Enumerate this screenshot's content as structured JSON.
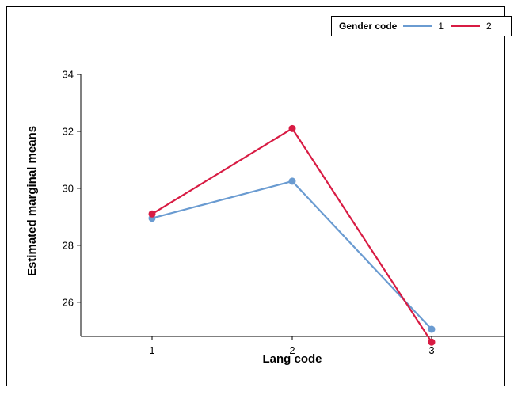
{
  "chart_data": {
    "type": "line",
    "title": "",
    "xlabel": "Lang code",
    "ylabel": "Estimated marginal means",
    "categories": [
      "1",
      "2",
      "3"
    ],
    "ylim": [
      24.8,
      34
    ],
    "yticks": [
      26,
      28,
      30,
      32,
      34
    ],
    "legend": {
      "title": "Gender code",
      "placement": "top-right"
    },
    "series": [
      {
        "name": "1",
        "color": "#6a9bd1",
        "values": [
          28.95,
          30.25,
          25.05
        ]
      },
      {
        "name": "2",
        "color": "#d81b43",
        "values": [
          29.1,
          32.1,
          24.6
        ]
      }
    ],
    "grid": false
  }
}
